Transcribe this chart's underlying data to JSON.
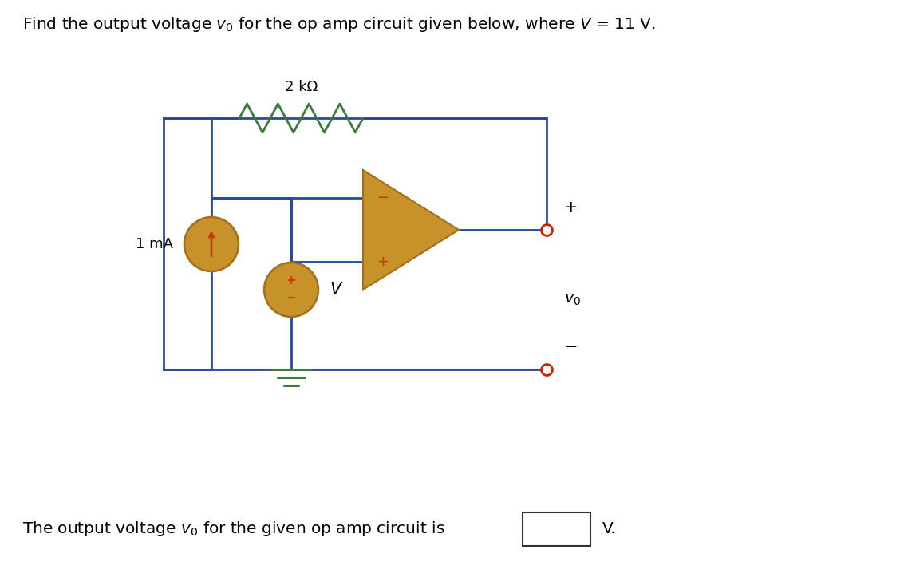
{
  "title": "Find the output voltage $v_0$ for the op amp circuit given below, where $V$\\,=\\,11\\,V.",
  "resistor_label": "2 kΩ",
  "current_label": "1 mA",
  "voltage_label": "V",
  "bottom_text": "The output voltage $v_0$ for the given op amp circuit is",
  "bg_color": "#ffffff",
  "wire_color": "#2a4a9a",
  "resistor_color": "#3a7a3a",
  "opamp_fill": "#c8922a",
  "opamp_edge": "#a07020",
  "source_fill": "#c8922a",
  "source_edge": "#a07020",
  "terminal_color": "#cc2200",
  "ground_color": "#3a7a3a",
  "text_color": "#000000",
  "plus_minus_color": "#cc3300",
  "arrow_color": "#cc3300"
}
